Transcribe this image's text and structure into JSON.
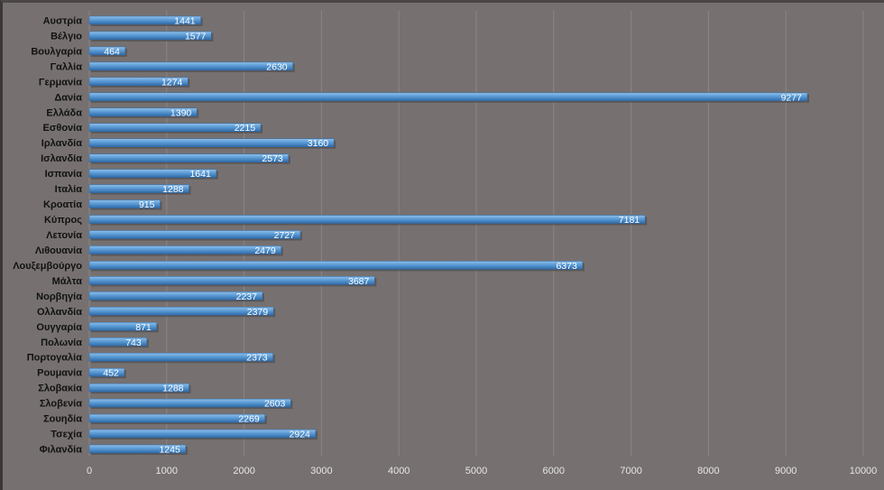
{
  "chart_data": {
    "type": "bar",
    "orientation": "horizontal",
    "categories": [
      "Αυστρία",
      "Βέλγιο",
      "Βουλγαρία",
      "Γαλλία",
      "Γερμανία",
      "Δανία",
      "Ελλάδα",
      "Εσθονία",
      "Ιρλανδία",
      "Ισλανδία",
      "Ισπανία",
      "Ιταλία",
      "Κροατία",
      "Κύπρος",
      "Λετονία",
      "Λιθουανία",
      "Λουξεμβούργο",
      "Μάλτα",
      "Νορβηγία",
      "Ολλανδία",
      "Ουγγαρία",
      "Πολωνία",
      "Πορτογαλία",
      "Ρουμανία",
      "Σλοβακία",
      "Σλοβενία",
      "Σουηδία",
      "Τσεχία",
      "Φιλανδία"
    ],
    "values": [
      1441,
      1577,
      464,
      2630,
      1274,
      9277,
      1390,
      2215,
      3160,
      2573,
      1641,
      1288,
      915,
      7181,
      2727,
      2479,
      6373,
      3687,
      2237,
      2379,
      871,
      743,
      2373,
      452,
      1288,
      2603,
      2269,
      2924,
      1245
    ],
    "xlim": [
      0,
      10000
    ],
    "xticks": [
      "0",
      "1000",
      "2000",
      "3000",
      "4000",
      "5000",
      "6000",
      "7000",
      "8000",
      "9000",
      "10000"
    ],
    "title": "",
    "xlabel": "",
    "ylabel": "",
    "grid": "vertical",
    "legend": "none",
    "colors": {
      "background": "#767170",
      "bar": "#5b9bd5",
      "bar_light": "#8fbfe9",
      "bar_dark": "#2f6aa8",
      "gridline": "#8a8585",
      "category_text": "#111111",
      "tick_text": "#e6e6e6",
      "data_label_text": "#ffffff"
    }
  }
}
